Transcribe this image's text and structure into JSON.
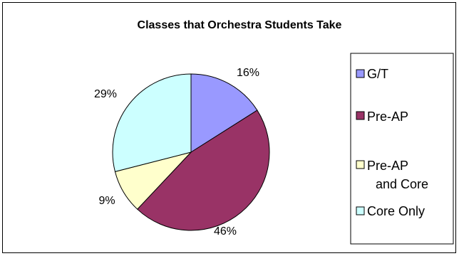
{
  "chart_data": {
    "type": "pie",
    "title": "Classes that Orchestra Students Take",
    "legend_position": "right",
    "slices": [
      {
        "name": "G/T",
        "name_lines": [
          "G/T"
        ],
        "value": 16,
        "label": "16%",
        "color": "#9999ff"
      },
      {
        "name": "Pre-AP",
        "name_lines": [
          "Pre-AP"
        ],
        "value": 46,
        "label": "46%",
        "color": "#993366"
      },
      {
        "name": "Pre-AP and Core",
        "name_lines": [
          "Pre-AP",
          "and Core"
        ],
        "value": 9,
        "label": "9%",
        "color": "#ffffcc"
      },
      {
        "name": "Core Only",
        "name_lines": [
          "Core Only"
        ],
        "value": 29,
        "label": "29%",
        "color": "#ccffff"
      }
    ]
  }
}
